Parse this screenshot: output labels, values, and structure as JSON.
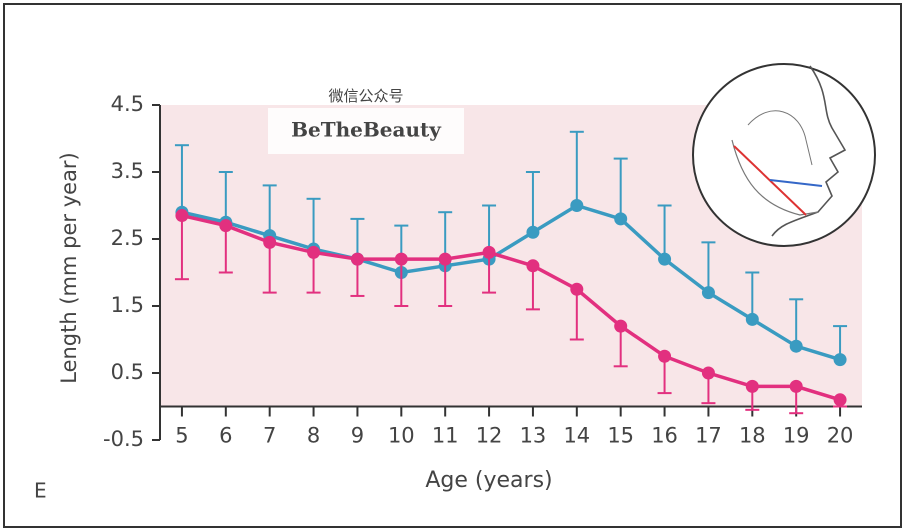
{
  "chart_data": {
    "type": "line",
    "panel_label": "E",
    "watermark": {
      "line1": "微信公众号",
      "line2": "BeTheBeauty"
    },
    "x_label": "Age (years)",
    "y_label": "Length (mm per year)",
    "x": [
      5,
      6,
      7,
      8,
      9,
      10,
      11,
      12,
      13,
      14,
      15,
      16,
      17,
      18,
      19,
      20
    ],
    "xlim": [
      4.5,
      20.5
    ],
    "xticks": [
      5,
      6,
      7,
      8,
      9,
      10,
      11,
      12,
      13,
      14,
      15,
      16,
      17,
      18,
      19,
      20
    ],
    "ylim": [
      -0.5,
      4.5
    ],
    "yticks": [
      -0.5,
      0.5,
      1.5,
      2.5,
      3.5,
      4.5
    ],
    "background": "#f8e6e8",
    "series": [
      {
        "color": "#3a9bc1",
        "error_direction": "up",
        "values": [
          2.9,
          2.75,
          2.55,
          2.35,
          2.2,
          2.0,
          2.1,
          2.2,
          2.6,
          3.0,
          2.8,
          2.2,
          1.7,
          1.3,
          0.9,
          0.7
        ],
        "errors": [
          1.0,
          0.75,
          0.75,
          0.75,
          0.6,
          0.7,
          0.8,
          0.8,
          0.9,
          1.1,
          0.9,
          0.8,
          0.75,
          0.7,
          0.7,
          0.5
        ]
      },
      {
        "color": "#e2307f",
        "error_direction": "down",
        "values": [
          2.85,
          2.7,
          2.45,
          2.3,
          2.2,
          2.2,
          2.2,
          2.3,
          2.1,
          1.75,
          1.2,
          0.75,
          0.5,
          0.3,
          0.3,
          0.1
        ],
        "errors": [
          0.95,
          0.7,
          0.75,
          0.6,
          0.55,
          0.7,
          0.7,
          0.6,
          0.65,
          0.75,
          0.6,
          0.55,
          0.45,
          0.35,
          0.4,
          0.1
        ]
      }
    ]
  }
}
